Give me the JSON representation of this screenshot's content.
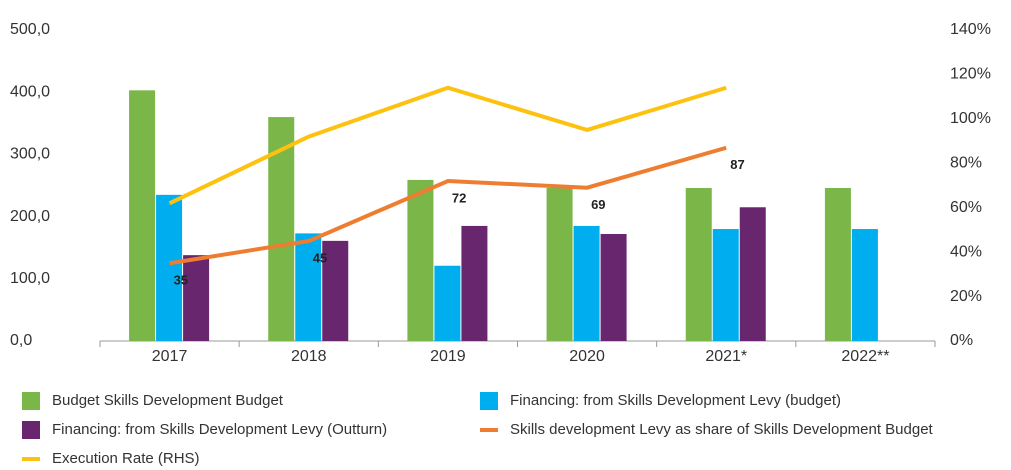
{
  "chart_data": {
    "type": "bar_line",
    "categories": [
      "2017",
      "2018",
      "2019",
      "2020",
      "2021*",
      "2022**"
    ],
    "series": [
      {
        "name": "Budget Skills Development Budget",
        "type": "bar",
        "color": "#7ab648",
        "values": [
          403,
          360,
          259,
          246,
          246,
          246
        ]
      },
      {
        "name": "Financing: from Skills Development Levy (budget)",
        "type": "bar",
        "color": "#00aeef",
        "values": [
          235,
          173,
          121,
          185,
          180,
          180
        ]
      },
      {
        "name": "Financing: from Skills Development Levy (Outturn)",
        "type": "bar",
        "color": "#68266e",
        "values": [
          138,
          161,
          185,
          172,
          215,
          null
        ]
      },
      {
        "name": "Skills development Levy as share of Skills Development Budget",
        "type": "line",
        "axis": "y2",
        "color": "#ee7d31",
        "values": [
          35,
          45,
          72,
          69,
          87,
          null
        ]
      },
      {
        "name": "Execution Rate (RHS)",
        "type": "line",
        "axis": "y2",
        "color": "#fdc20f",
        "values": [
          62,
          92,
          114,
          95,
          114,
          null
        ]
      }
    ],
    "ylim": [
      0,
      500
    ],
    "yticks": [
      {
        "value": 0,
        "label": "0,0"
      },
      {
        "value": 100,
        "label": "100,0"
      },
      {
        "value": 200,
        "label": "200,0"
      },
      {
        "value": 300,
        "label": "300,0"
      },
      {
        "value": 400,
        "label": "400,0"
      },
      {
        "value": 500,
        "label": "500,0"
      }
    ],
    "y2lim": [
      0,
      140
    ],
    "y2ticks": [
      {
        "value": 0,
        "label": "0%"
      },
      {
        "value": 20,
        "label": "20%"
      },
      {
        "value": 40,
        "label": "40%"
      },
      {
        "value": 60,
        "label": "60%"
      },
      {
        "value": 80,
        "label": "80%"
      },
      {
        "value": 100,
        "label": "100%"
      },
      {
        "value": 120,
        "label": "120%"
      },
      {
        "value": 140,
        "label": "140%"
      }
    ],
    "data_labels_series": 3,
    "grid": false
  }
}
